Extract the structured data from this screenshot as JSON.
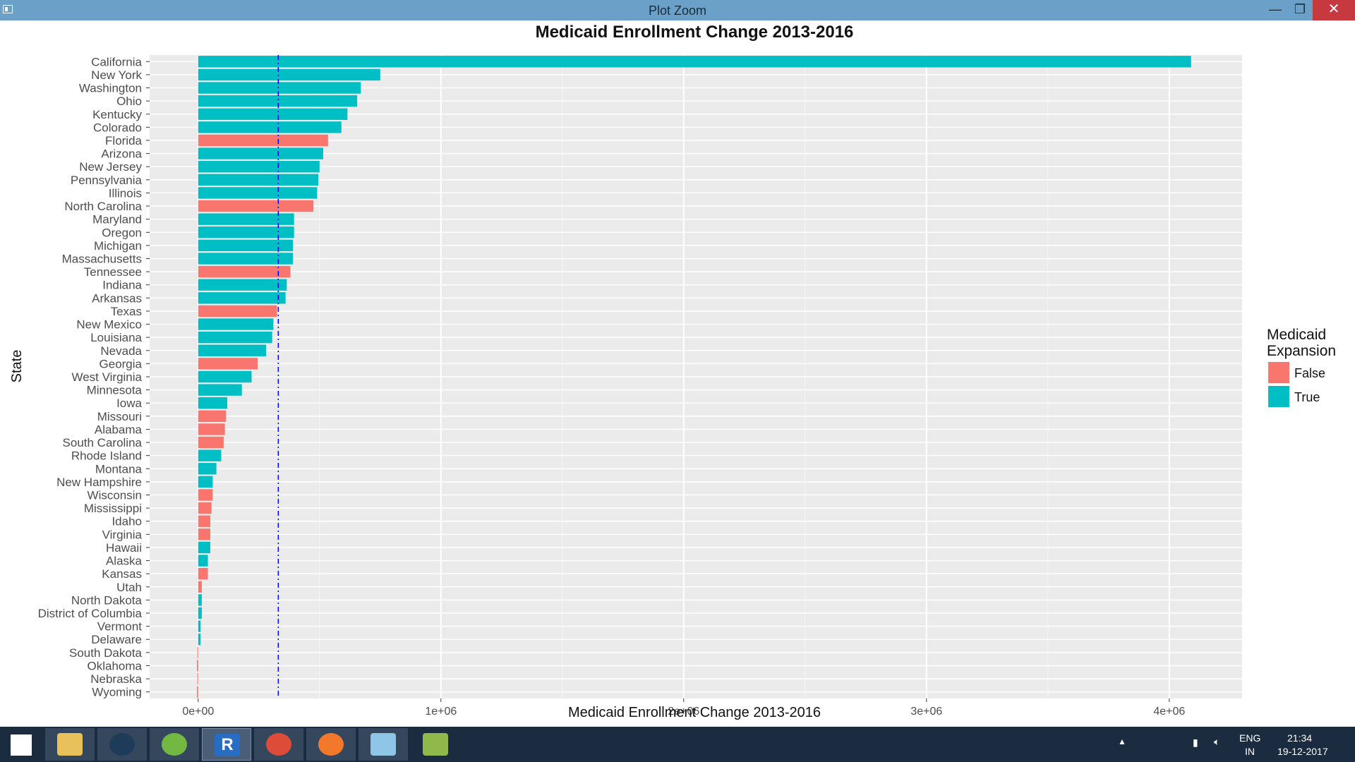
{
  "window": {
    "title": "Plot Zoom",
    "minimize_glyph": "—",
    "maximize_glyph": "❐",
    "close_glyph": "✕"
  },
  "chart_data": {
    "type": "bar",
    "orientation": "horizontal",
    "title": "Medicaid Enrollment Change 2013-2016",
    "xlabel": "Medicaid Enrollment Change 2013-2016",
    "ylabel": "State",
    "xlim": [
      -200000,
      4300000
    ],
    "xticks": [
      0,
      1000000,
      2000000,
      3000000,
      4000000
    ],
    "xtick_labels": [
      "0e+00",
      "1e+06",
      "2e+06",
      "3e+06",
      "4e+06"
    ],
    "reference_line": {
      "value": 330000,
      "style": "dashed",
      "color": "#0000ff"
    },
    "legend": {
      "title_lines": [
        "Medicaid",
        "Expansion"
      ],
      "placement": "right",
      "items": [
        {
          "label": "False",
          "color": "#f8766d"
        },
        {
          "label": "True",
          "color": "#00bfc4"
        }
      ]
    },
    "background": "#ebebeb",
    "grid": true,
    "categories": [
      "California",
      "New York",
      "Washington",
      "Ohio",
      "Kentucky",
      "Colorado",
      "Florida",
      "Arizona",
      "New Jersey",
      "Pennsylvania",
      "Illinois",
      "North Carolina",
      "Maryland",
      "Oregon",
      "Michigan",
      "Massachusetts",
      "Tennessee",
      "Indiana",
      "Arkansas",
      "Texas",
      "New Mexico",
      "Louisiana",
      "Nevada",
      "Georgia",
      "West Virginia",
      "Minnesota",
      "Iowa",
      "Missouri",
      "Alabama",
      "South Carolina",
      "Rhode Island",
      "Montana",
      "New Hampshire",
      "Wisconsin",
      "Mississippi",
      "Idaho",
      "Virginia",
      "Hawaii",
      "Alaska",
      "Kansas",
      "Utah",
      "North Dakota",
      "District of Columbia",
      "Vermont",
      "Delaware",
      "South Dakota",
      "Oklahoma",
      "Nebraska",
      "Wyoming"
    ],
    "values": [
      4090000,
      750000,
      670000,
      655000,
      615000,
      590000,
      535000,
      515000,
      500000,
      495000,
      490000,
      475000,
      395000,
      395000,
      390000,
      390000,
      380000,
      365000,
      360000,
      325000,
      310000,
      305000,
      280000,
      245000,
      220000,
      180000,
      120000,
      115000,
      110000,
      105000,
      95000,
      75000,
      60000,
      60000,
      55000,
      50000,
      50000,
      50000,
      40000,
      40000,
      15000,
      15000,
      15000,
      10000,
      10000,
      -3000,
      -5000,
      -3000,
      -5000
    ],
    "expansion": [
      true,
      true,
      true,
      true,
      true,
      true,
      false,
      true,
      true,
      true,
      true,
      false,
      true,
      true,
      true,
      true,
      false,
      true,
      true,
      false,
      true,
      true,
      true,
      false,
      true,
      true,
      true,
      false,
      false,
      false,
      true,
      true,
      true,
      false,
      false,
      false,
      false,
      true,
      true,
      false,
      false,
      true,
      true,
      true,
      true,
      false,
      false,
      false,
      false
    ]
  },
  "taskbar": {
    "apps": [
      {
        "name": "start",
        "icon": "windows-start-icon"
      },
      {
        "name": "file-explorer",
        "icon": "folder-icon"
      },
      {
        "name": "steam",
        "icon": "steam-icon"
      },
      {
        "name": "utorrent",
        "icon": "utorrent-icon"
      },
      {
        "name": "r",
        "icon": "r-icon",
        "letter": "R"
      },
      {
        "name": "chrome",
        "icon": "chrome-icon"
      },
      {
        "name": "firefox",
        "icon": "firefox-icon"
      },
      {
        "name": "notepad",
        "icon": "notepad-icon"
      },
      {
        "name": "rstudio-gnome",
        "icon": "whisker-menu-icon"
      }
    ],
    "tray": {
      "language": "ENG",
      "region": "IN",
      "time": "21:34",
      "date": "19-12-2017"
    }
  }
}
